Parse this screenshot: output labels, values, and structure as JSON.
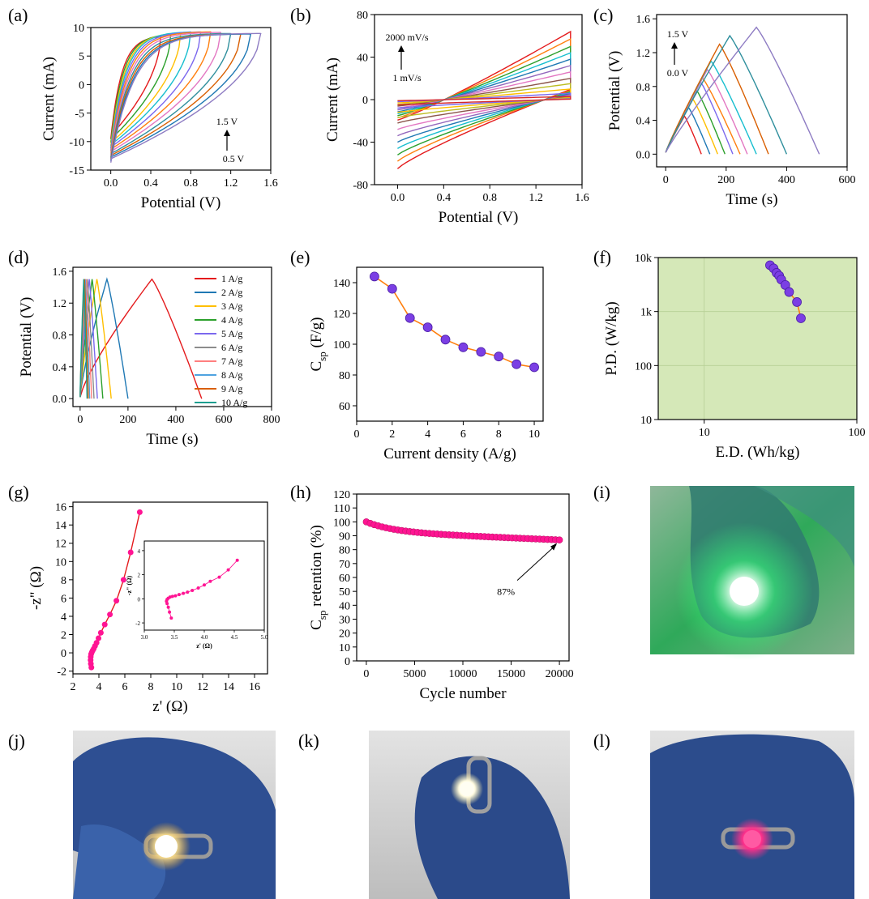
{
  "figure": {
    "panels": [
      {
        "id": "a",
        "label": "(a)"
      },
      {
        "id": "b",
        "label": "(b)"
      },
      {
        "id": "c",
        "label": "(c)"
      },
      {
        "id": "d",
        "label": "(d)"
      },
      {
        "id": "e",
        "label": "(e)"
      },
      {
        "id": "f",
        "label": "(f)"
      },
      {
        "id": "g",
        "label": "(g)"
      },
      {
        "id": "h",
        "label": "(h)"
      },
      {
        "id": "i",
        "label": "(i)"
      },
      {
        "id": "j",
        "label": "(j)"
      },
      {
        "id": "k",
        "label": "(k)"
      },
      {
        "id": "l",
        "label": "(l)"
      }
    ],
    "photos": {
      "i": {
        "glow_color": "#39ff7a",
        "background": "#4fa86b",
        "glove": "#2f6f74"
      },
      "j": {
        "glow_color": "#ffd35a",
        "background": "#c9c9c9",
        "glove": "#2f4f8f"
      },
      "k": {
        "glow_color": "#fffbe0",
        "background": "#d9d9d9",
        "glove": "#2b4a8a"
      },
      "l": {
        "glow_color": "#ff2f8a",
        "background": "#cfcfcf",
        "glove": "#2c4c8c"
      }
    }
  },
  "chart_data": [
    {
      "panel": "a",
      "type": "line",
      "shape": "cv-loops",
      "xlabel": "Potential (V)",
      "ylabel": "Current (mA)",
      "xlim": [
        -0.2,
        1.6
      ],
      "ylim": [
        -15,
        10
      ],
      "xticks": [
        "0.0",
        "0.4",
        "0.8",
        "1.2",
        "1.6"
      ],
      "yticks": [
        "-15",
        "-10",
        "-5",
        "0",
        "5",
        "10"
      ],
      "annotation_top": "1.5 V",
      "annotation_bottom": "0.5 V",
      "colors": [
        "#e41a1c",
        "#2ca02c",
        "#ffbf00",
        "#17becf",
        "#7b68ee",
        "#ff7f0e",
        "#e377c2",
        "#2f8f9d",
        "#d95f02",
        "#1f78b4",
        "#8e7cc3"
      ],
      "series": [
        {
          "vmax": 0.5,
          "imax": 8.6,
          "imin": -9.5
        },
        {
          "vmax": 0.6,
          "imax": 8.9,
          "imin": -10.2
        },
        {
          "vmax": 0.7,
          "imax": 9.1,
          "imin": -10.8
        },
        {
          "vmax": 0.8,
          "imax": 9.3,
          "imin": -11.2
        },
        {
          "vmax": 0.9,
          "imax": 9.3,
          "imin": -11.6
        },
        {
          "vmax": 1.0,
          "imax": 9.3,
          "imin": -12.0
        },
        {
          "vmax": 1.1,
          "imax": 9.2,
          "imin": -12.4
        },
        {
          "vmax": 1.2,
          "imax": 9.0,
          "imin": -12.8
        },
        {
          "vmax": 1.3,
          "imax": 8.9,
          "imin": -13.1
        },
        {
          "vmax": 1.4,
          "imax": 8.9,
          "imin": -13.4
        },
        {
          "vmax": 1.5,
          "imax": 9.0,
          "imin": -13.7
        }
      ]
    },
    {
      "panel": "b",
      "type": "line",
      "shape": "cv-scanrate",
      "xlabel": "Potential (V)",
      "ylabel": "Current (mA)",
      "xlim": [
        -0.2,
        1.6
      ],
      "ylim": [
        -80,
        80
      ],
      "xticks": [
        "0.0",
        "0.4",
        "0.8",
        "1.2",
        "1.6"
      ],
      "yticks": [
        "-80",
        "-40",
        "0",
        "40",
        "80"
      ],
      "annotation_top": "2000 mV/s",
      "annotation_bottom": "1 mV/s",
      "colors": [
        "#e41a1c",
        "#ff7f0e",
        "#2ca02c",
        "#17becf",
        "#1f78b4",
        "#9467bd",
        "#e377c2",
        "#8c564b",
        "#bcbd22",
        "#ffbf00",
        "#7b68ee",
        "#d62728"
      ],
      "series": [
        {
          "imax": 64,
          "imin": -65
        },
        {
          "imax": 57,
          "imin": -58
        },
        {
          "imax": 50,
          "imin": -52
        },
        {
          "imax": 44,
          "imin": -46
        },
        {
          "imax": 38,
          "imin": -40
        },
        {
          "imax": 32,
          "imin": -34
        },
        {
          "imax": 26,
          "imin": -28
        },
        {
          "imax": 20,
          "imin": -22
        },
        {
          "imax": 15,
          "imin": -17
        },
        {
          "imax": 10,
          "imin": -12
        },
        {
          "imax": 6,
          "imin": -8
        },
        {
          "imax": 3,
          "imin": -5
        }
      ]
    },
    {
      "panel": "c",
      "type": "line",
      "shape": "gcd-window",
      "xlabel": "Time (s)",
      "ylabel": "Potential (V)",
      "xlim": [
        -30,
        600
      ],
      "ylim": [
        -0.15,
        1.65
      ],
      "xticks": [
        "0",
        "200",
        "400",
        "600"
      ],
      "yticks": [
        "0.0",
        "0.4",
        "0.8",
        "1.2",
        "1.6"
      ],
      "annotation_top": "1.5 V",
      "annotation_bottom": "0.0 V",
      "colors": [
        "#e41a1c",
        "#1f78b4",
        "#ffbf00",
        "#2ca02c",
        "#7b68ee",
        "#ff7f0e",
        "#e377c2",
        "#17becf",
        "#d95f02",
        "#2f8f9d",
        "#8e7cc3"
      ],
      "series": [
        {
          "vmax": 0.45,
          "tpeak": 62,
          "tend": 118
        },
        {
          "vmax": 0.55,
          "tpeak": 76,
          "tend": 146
        },
        {
          "vmax": 0.65,
          "tpeak": 90,
          "tend": 172
        },
        {
          "vmax": 0.75,
          "tpeak": 103,
          "tend": 196
        },
        {
          "vmax": 0.85,
          "tpeak": 116,
          "tend": 222
        },
        {
          "vmax": 0.9,
          "tpeak": 122,
          "tend": 246
        },
        {
          "vmax": 1.0,
          "tpeak": 138,
          "tend": 270
        },
        {
          "vmax": 1.1,
          "tpeak": 150,
          "tend": 300
        },
        {
          "vmax": 1.3,
          "tpeak": 178,
          "tend": 340
        },
        {
          "vmax": 1.4,
          "tpeak": 212,
          "tend": 400
        },
        {
          "vmax": 1.5,
          "tpeak": 300,
          "tend": 508
        }
      ]
    },
    {
      "panel": "d",
      "type": "line",
      "shape": "gcd-current",
      "xlabel": "Time (s)",
      "ylabel": "Potential (V)",
      "xlim": [
        -30,
        800
      ],
      "ylim": [
        -0.1,
        1.65
      ],
      "xticks": [
        "0",
        "200",
        "400",
        "600",
        "800"
      ],
      "yticks": [
        "0.0",
        "0.4",
        "0.8",
        "1.2",
        "1.6"
      ],
      "legend_position": "right",
      "series": [
        {
          "name": "1 A/g",
          "color": "#e41a1c",
          "tpeak": 300,
          "tend": 508
        },
        {
          "name": "2 A/g",
          "color": "#1f78b4",
          "tpeak": 112,
          "tend": 200
        },
        {
          "name": "3 A/g",
          "color": "#ffbf00",
          "tpeak": 70,
          "tend": 130
        },
        {
          "name": "4 A/g",
          "color": "#2ca02c",
          "tpeak": 50,
          "tend": 95
        },
        {
          "name": "5 A/g",
          "color": "#7b68ee",
          "tpeak": 38,
          "tend": 72
        },
        {
          "name": "6 A/g",
          "color": "#8c8c8c",
          "tpeak": 30,
          "tend": 58
        },
        {
          "name": "7 A/g",
          "color": "#ff7f7f",
          "tpeak": 25,
          "tend": 48
        },
        {
          "name": "8 A/g",
          "color": "#4fa3e0",
          "tpeak": 21,
          "tend": 40
        },
        {
          "name": "9 A/g",
          "color": "#d95f02",
          "tpeak": 18,
          "tend": 34
        },
        {
          "name": "10 A/g",
          "color": "#1b9e8f",
          "tpeak": 15,
          "tend": 29
        }
      ]
    },
    {
      "panel": "e",
      "type": "line",
      "xlabel": "Current density (A/g)",
      "ylabel_main": "C",
      "ylabel_sub": "sp",
      "ylabel_rest": " (F/g)",
      "xlim": [
        0,
        10.5
      ],
      "ylim": [
        50,
        150
      ],
      "xticks": [
        "0",
        "2",
        "4",
        "6",
        "8",
        "10"
      ],
      "yticks": [
        "60",
        "80",
        "100",
        "120",
        "140"
      ],
      "line_color": "#ff7f0e",
      "marker_color": "#7b3fe4",
      "x": [
        1,
        2,
        3,
        4,
        5,
        6,
        7,
        8,
        9,
        10
      ],
      "values": [
        144,
        136,
        117,
        111,
        103,
        98,
        95,
        92,
        87,
        85
      ]
    },
    {
      "panel": "f",
      "type": "scatter",
      "scale": "log",
      "xlabel": "E.D. (Wh/kg)",
      "ylabel": "P.D. (W/kg)",
      "xlim": [
        5,
        100
      ],
      "ylim": [
        10,
        10000
      ],
      "xticks": [
        "10",
        "100"
      ],
      "yticks": [
        "10",
        "100",
        "1k",
        "10k"
      ],
      "background": "#d5e8b8",
      "grid": true,
      "line_color": "#ff7f0e",
      "marker_color": "#7b3fe4",
      "x": [
        27,
        28.5,
        29.8,
        31,
        32,
        34,
        36,
        40.5,
        43
      ],
      "values": [
        7200,
        6300,
        5200,
        4600,
        3900,
        3100,
        2300,
        1500,
        750
      ]
    },
    {
      "panel": "g",
      "type": "scatter",
      "xlabel": "z' (Ω)",
      "ylabel": "-z\" (Ω)",
      "xlim": [
        2,
        17
      ],
      "ylim": [
        -2.3,
        16.5
      ],
      "xticks": [
        "2",
        "4",
        "6",
        "8",
        "10",
        "12",
        "14",
        "16"
      ],
      "yticks": [
        "-2",
        "0",
        "2",
        "4",
        "6",
        "8",
        "10",
        "12",
        "14",
        "16"
      ],
      "line_color": "#e41a1c",
      "marker_color": "#ff1493",
      "x": [
        3.42,
        3.38,
        3.36,
        3.37,
        3.4,
        3.45,
        3.52,
        3.6,
        3.7,
        3.82,
        3.97,
        4.15,
        4.45,
        4.85,
        5.35,
        5.9,
        6.45,
        7.15
      ],
      "values": [
        -1.6,
        -1.2,
        -0.8,
        -0.45,
        -0.15,
        0.05,
        0.25,
        0.45,
        0.75,
        1.1,
        1.6,
        2.2,
        3.1,
        4.2,
        5.7,
        8.0,
        11.0,
        15.4
      ],
      "inset": {
        "xlabel": "z' (Ω)",
        "ylabel": "-z\" (Ω)",
        "xlim": [
          3.0,
          5.0
        ],
        "ylim": [
          -2.6,
          4.8
        ],
        "xticks": [
          "3.0",
          "3.5",
          "4.0",
          "4.5",
          "5.0"
        ],
        "yticks": [
          "-2",
          "0",
          "2",
          "4"
        ],
        "x": [
          3.45,
          3.42,
          3.4,
          3.38,
          3.37,
          3.38,
          3.4,
          3.43,
          3.47,
          3.52,
          3.58,
          3.65,
          3.72,
          3.8,
          3.9,
          4.0,
          4.1,
          4.25,
          4.4,
          4.55
        ],
        "values": [
          -1.6,
          -1.1,
          -0.7,
          -0.4,
          -0.2,
          -0.05,
          0.05,
          0.15,
          0.2,
          0.25,
          0.35,
          0.45,
          0.55,
          0.7,
          0.9,
          1.15,
          1.45,
          1.8,
          2.4,
          3.2
        ]
      }
    },
    {
      "panel": "h",
      "type": "scatter",
      "xlabel": "Cycle number",
      "ylabel_main": "C",
      "ylabel_sub": "sp",
      "ylabel_rest": " retention (%)",
      "xlim": [
        -1000,
        21000
      ],
      "ylim": [
        0,
        120
      ],
      "xticks": [
        "0",
        "5000",
        "10000",
        "15000",
        "20000"
      ],
      "yticks": [
        "0",
        "10",
        "20",
        "30",
        "40",
        "50",
        "60",
        "70",
        "80",
        "90",
        "100",
        "110",
        "120"
      ],
      "marker_color": "#ff1493",
      "annotation": "87%",
      "x_start": 0,
      "x_end": 20000,
      "points": 50,
      "values_start": 100,
      "values_end": 87
    }
  ]
}
